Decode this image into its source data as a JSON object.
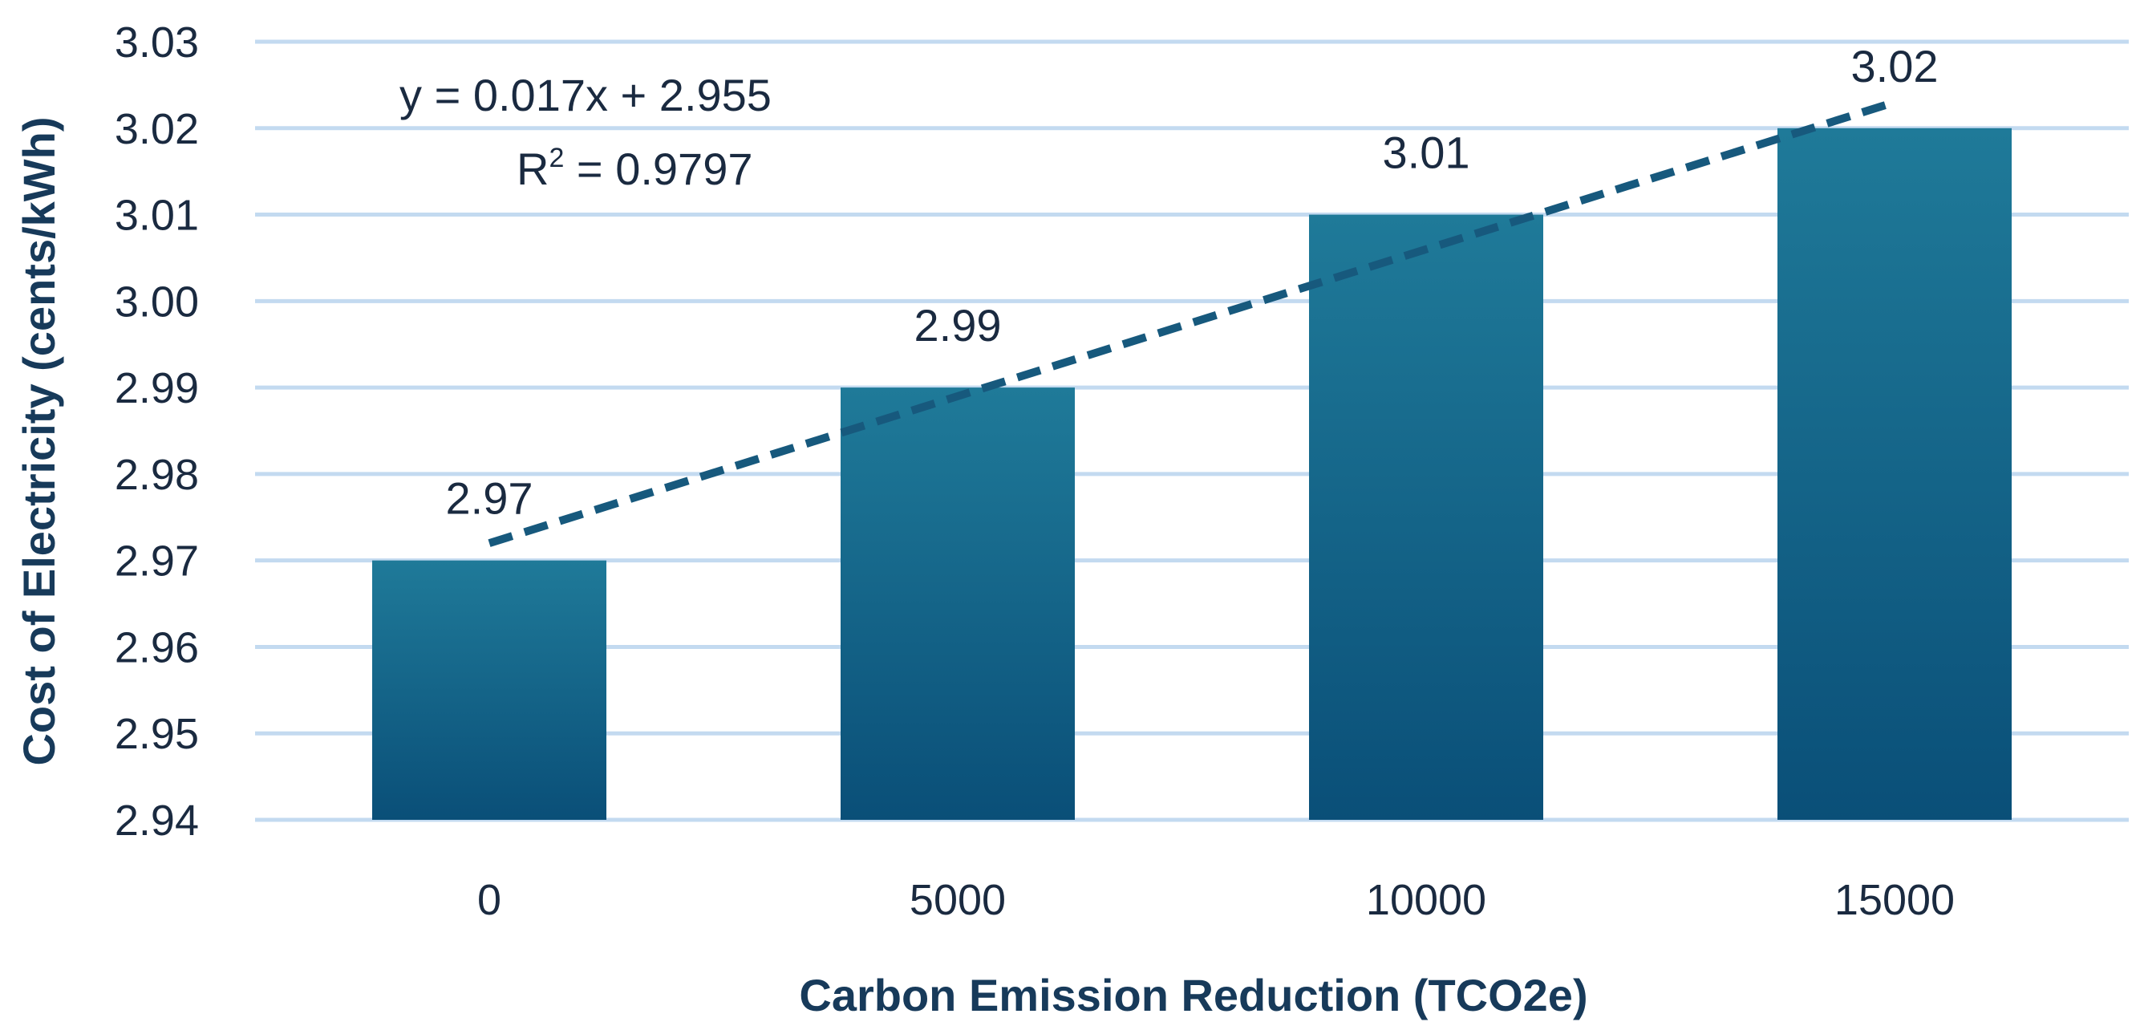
{
  "chart_data": {
    "type": "bar",
    "title": "",
    "xlabel": "Carbon Emission Reduction (TCO2e)",
    "ylabel": "Cost of Electricity (cents/kWh)",
    "categories": [
      "0",
      "5000",
      "10000",
      "15000"
    ],
    "values": [
      2.97,
      2.99,
      3.01,
      3.02
    ],
    "value_labels": [
      "2.97",
      "2.99",
      "3.01",
      "3.02"
    ],
    "ylim": [
      2.94,
      3.03
    ],
    "yticks": [
      "2.94",
      "2.95",
      "2.96",
      "2.97",
      "2.98",
      "2.99",
      "3.00",
      "3.01",
      "3.02",
      "3.03"
    ],
    "grid": true,
    "legend": "none",
    "trendline": {
      "type": "linear",
      "slope": 0.017,
      "intercept": 2.955,
      "equation": "y = 0.017x + 2.955",
      "r2_prefix": "R",
      "r2_superscript": "2",
      "r2_value": " = 0.9797"
    },
    "colors": {
      "bar_top": "#1f7a99",
      "bar_bottom": "#0a4f78",
      "trendline": "#17597d",
      "grid": "#c3daf0"
    }
  }
}
